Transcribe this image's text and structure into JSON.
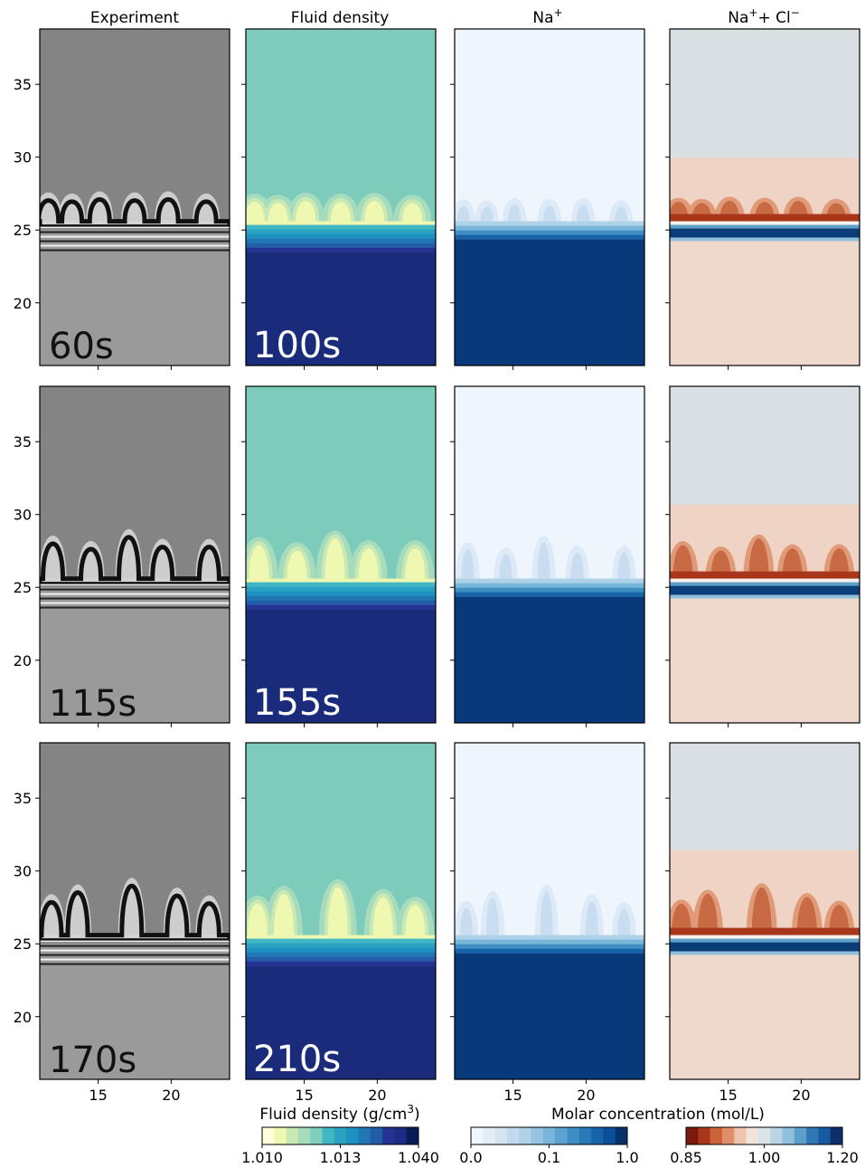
{
  "chart_data": {
    "type": "heatmap",
    "layout": "3x4 panel grid with shared axes",
    "columns": [
      {
        "title": "Experiment"
      },
      {
        "title": "Fluid density"
      },
      {
        "title_main": "Na",
        "title_sup": "+"
      },
      {
        "title_a": "Na",
        "title_a_sup": "+",
        "title_plus": "+ Cl",
        "title_b_sup": "−"
      }
    ],
    "rows": [
      {
        "experiment_time": "60s",
        "simulation_time": "100s",
        "fingers": [
          [
            11.6,
            1.4
          ],
          [
            13.2,
            1.3
          ],
          [
            15.1,
            1.5
          ],
          [
            17.5,
            1.4
          ],
          [
            19.8,
            1.5
          ],
          [
            22.4,
            1.3
          ]
        ]
      },
      {
        "experiment_time": "115s",
        "simulation_time": "155s",
        "fingers": [
          [
            11.9,
            2.7
          ],
          [
            14.5,
            2.2
          ],
          [
            17.1,
            3.3
          ],
          [
            19.4,
            2.4
          ],
          [
            22.6,
            2.4
          ]
        ]
      },
      {
        "experiment_time": "170s",
        "simulation_time": "210s",
        "fingers": [
          [
            11.8,
            2.5
          ],
          [
            13.6,
            3.4
          ],
          [
            17.3,
            4.0
          ],
          [
            20.4,
            3.1
          ],
          [
            22.6,
            2.4
          ]
        ]
      }
    ],
    "xlim": [
      11,
      24
    ],
    "ylim": [
      15.7,
      38.8
    ],
    "xticks": [
      15,
      20
    ],
    "yticks": [
      20,
      25,
      30,
      35
    ],
    "interface_y": 25.6,
    "grid": false,
    "colorbars": [
      {
        "label_text": "Fluid density (g/cm",
        "label_sup": "3",
        "label_close": ")",
        "ticks": [
          "1.010",
          "1.013",
          "1.040"
        ],
        "colormap": "YlGnBu",
        "colors": [
          "#ffffd9",
          "#edf8b1",
          "#c7e9b4",
          "#a6dbbc",
          "#7fcdbb",
          "#41b6c4",
          "#2aa1c0",
          "#1d91c0",
          "#2177b4",
          "#225ea8",
          "#253494",
          "#1f2a84",
          "#081d58"
        ]
      },
      {
        "label_text": "Molar concentration (mol/L)",
        "ticks": [
          "0.0",
          "0.1",
          "1.0"
        ],
        "colormap": "Blues",
        "colors": [
          "#f0f6fd",
          "#e1edf8",
          "#d3e4f3",
          "#c3daee",
          "#b0d2e8",
          "#94c4df",
          "#77b5d9",
          "#5aa2cf",
          "#3e8ec4",
          "#2a7ab9",
          "#1764ab",
          "#0a4f97",
          "#08306b"
        ]
      },
      {
        "ticks": [
          "0.85",
          "1.00",
          "1.20"
        ],
        "colormap": "RdBu",
        "colors": [
          "#7a1a0b",
          "#a8361a",
          "#cc6238",
          "#e08f68",
          "#efc4ad",
          "#f2e4dd",
          "#dbe3e8",
          "#b9d4e5",
          "#90bfdc",
          "#5c9fcb",
          "#2f78b4",
          "#175aa0",
          "#0b2f6a"
        ]
      }
    ],
    "colors": {
      "density_background": "#7ccbbb",
      "density_deep": "#1a2b7b",
      "na_background": "#eef5fc",
      "na_deep": "#08397a",
      "nacl_background": "#d9dfe3",
      "nacl_lower": "#efd9cc",
      "nacl_band": "#0b3d78",
      "finger_density": "#eef8b0",
      "finger_nacl": "#c86a44"
    }
  }
}
